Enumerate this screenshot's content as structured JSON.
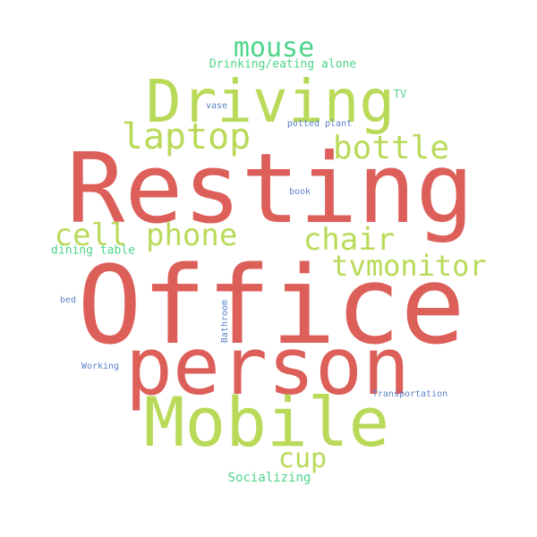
{
  "colors": {
    "red": "#dd5f5a",
    "lime": "#b9da59",
    "teal": "#4fd58a",
    "blue": "#5b83c9",
    "background": "#ffffff"
  },
  "words": [
    {
      "text": "Resting",
      "color": "#dd5f5a"
    },
    {
      "text": "Office",
      "color": "#dd5f5a"
    },
    {
      "text": "person",
      "color": "#dd5f5a"
    },
    {
      "text": "Driving",
      "color": "#b9da59"
    },
    {
      "text": "Mobile",
      "color": "#b9da59"
    },
    {
      "text": "laptop",
      "color": "#b9da59"
    },
    {
      "text": "bottle",
      "color": "#b9da59"
    },
    {
      "text": "cell phone",
      "color": "#b9da59"
    },
    {
      "text": "chair",
      "color": "#b9da59"
    },
    {
      "text": "tvmonitor",
      "color": "#b9da59"
    },
    {
      "text": "mouse",
      "color": "#4fd58a"
    },
    {
      "text": "cup",
      "color": "#b9da59"
    },
    {
      "text": "Drinking/eating alone",
      "color": "#4fd58a"
    },
    {
      "text": "TV",
      "color": "#4fd58a"
    },
    {
      "text": "vase",
      "color": "#5b83c9"
    },
    {
      "text": "potted plant",
      "color": "#5b83c9"
    },
    {
      "text": "book",
      "color": "#5b83c9"
    },
    {
      "text": "dining table",
      "color": "#4fd58a"
    },
    {
      "text": "bed",
      "color": "#5b83c9"
    },
    {
      "text": "Bathroom",
      "color": "#5b83c9"
    },
    {
      "text": "Working",
      "color": "#5b83c9"
    },
    {
      "text": "Transportation",
      "color": "#5b83c9"
    },
    {
      "text": "Socializing",
      "color": "#4fd58a"
    }
  ]
}
